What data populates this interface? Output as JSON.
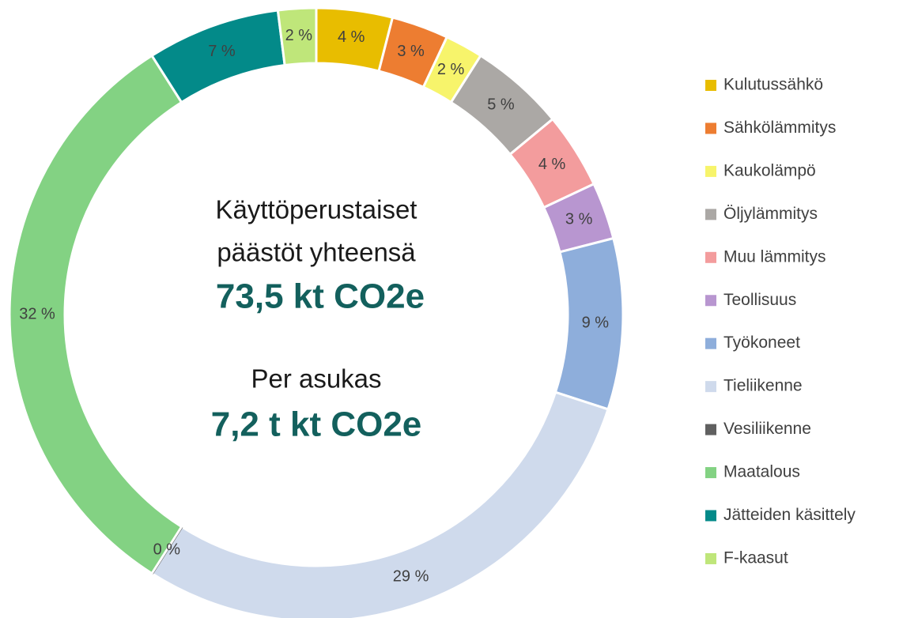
{
  "chart_data": {
    "type": "donut",
    "categories": [
      "Kulutussähkö",
      "Sähkölämmitys",
      "Kaukolämpö",
      "Öljylämmitys",
      "Muu lämmitys",
      "Teollisuus",
      "Työkoneet",
      "Tieliikenne",
      "Vesiliikenne",
      "Maatalous",
      "Jätteiden käsittely",
      "F-kaasut"
    ],
    "values": [
      4,
      3,
      2,
      5,
      4,
      3,
      9,
      29,
      0,
      32,
      7,
      2
    ],
    "value_labels": [
      "4 %",
      "3 %",
      "2 %",
      "5 %",
      "4 %",
      "3 %",
      "9 %",
      "29 %",
      "0 %",
      "32 %",
      "7 %",
      "2 %"
    ],
    "colors": [
      "#e8bd00",
      "#ed7d31",
      "#f7f46b",
      "#aba8a5",
      "#f39c9d",
      "#b896d0",
      "#8eaedb",
      "#cfdaec",
      "#606060",
      "#83d283",
      "#038a89",
      "#bfe67a"
    ],
    "legend": "right",
    "annotations": [
      "Käyttöperustaiset",
      "päästöt yhteensä",
      "73,5 kt CO2e",
      "Per asukas",
      "7,2 t kt CO2e"
    ]
  }
}
